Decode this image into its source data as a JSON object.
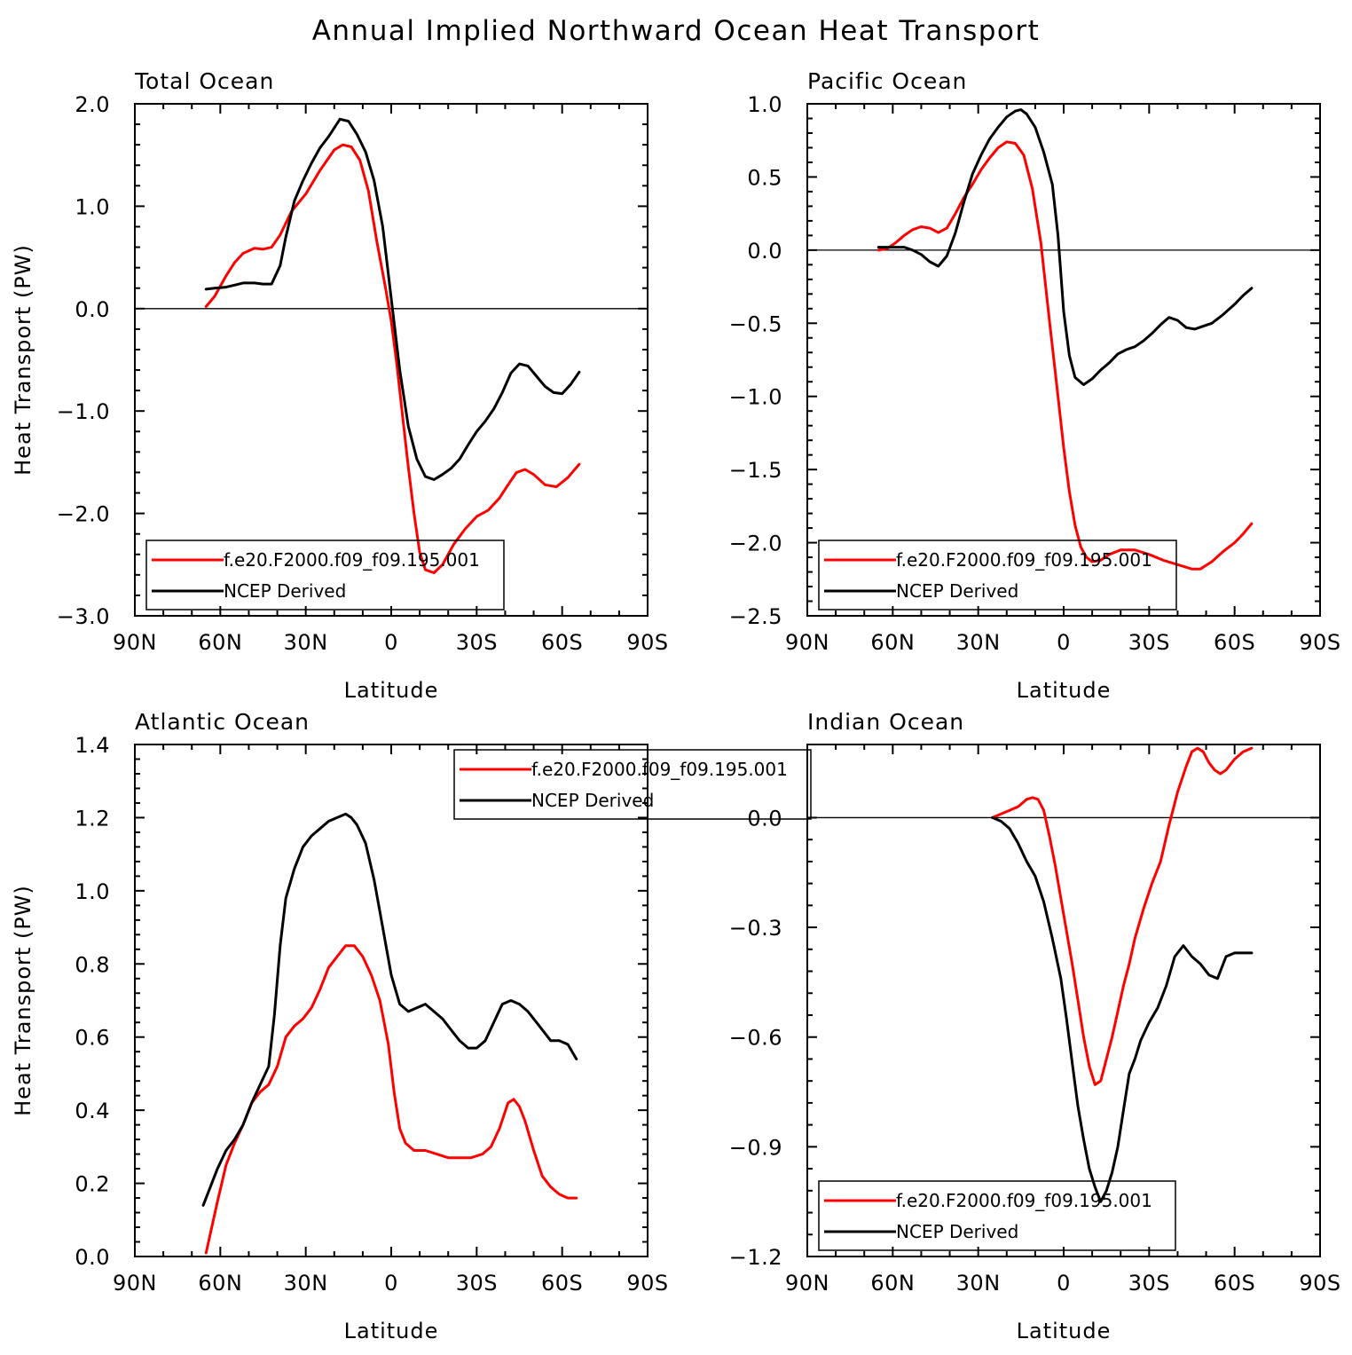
{
  "title": "Annual Implied Northward Ocean Heat Transport",
  "colors": {
    "model": "#ff0000",
    "obs": "#000000",
    "axis": "#000000"
  },
  "chart_data": [
    {
      "type": "line",
      "title": "Total Ocean",
      "xlabel": "Latitude",
      "ylabel": "Heat Transport (PW)",
      "xlim": [
        90,
        -90
      ],
      "ylim": [
        -3.0,
        2.0
      ],
      "x_ticks": [
        90,
        60,
        30,
        0,
        -30,
        -60,
        -90
      ],
      "x_tick_labels": [
        "90N",
        "60N",
        "30N",
        "0",
        "30S",
        "60S",
        "90S"
      ],
      "y_ticks": [
        2.0,
        1.0,
        0.0,
        -1.0,
        -2.0,
        -3.0
      ],
      "y_tick_labels": [
        "2.0",
        "1.0",
        "0.0",
        "−1.0",
        "−2.0",
        "−3.0"
      ],
      "zero_line": true,
      "legend_position": "bottom-left",
      "series": [
        {
          "name": "f.e20.F2000.f09_f09.195.001",
          "color": "#ff0000",
          "x": [
            65,
            62,
            58,
            55,
            52,
            48,
            45,
            42,
            39,
            35,
            30,
            25,
            20,
            17,
            14,
            11,
            8,
            5,
            2,
            0,
            -2,
            -4,
            -6,
            -8,
            -10,
            -12,
            -15,
            -18,
            -22,
            -26,
            -30,
            -34,
            -38,
            -41,
            -44,
            -47,
            -50,
            -54,
            -58,
            -62,
            -66
          ],
          "y": [
            0.02,
            0.12,
            0.32,
            0.45,
            0.54,
            0.59,
            0.58,
            0.6,
            0.72,
            0.95,
            1.12,
            1.35,
            1.55,
            1.6,
            1.58,
            1.45,
            1.15,
            0.65,
            0.2,
            -0.12,
            -0.55,
            -1.05,
            -1.55,
            -2.0,
            -2.38,
            -2.55,
            -2.58,
            -2.5,
            -2.3,
            -2.15,
            -2.03,
            -1.97,
            -1.85,
            -1.72,
            -1.6,
            -1.57,
            -1.62,
            -1.72,
            -1.74,
            -1.65,
            -1.52
          ]
        },
        {
          "name": "NCEP Derived",
          "color": "#000000",
          "x": [
            65,
            62,
            58,
            55,
            52,
            48,
            45,
            42,
            39,
            37,
            34,
            31,
            28,
            25,
            22,
            18,
            15,
            12,
            9,
            6,
            3,
            0,
            -3,
            -6,
            -9,
            -12,
            -15,
            -18,
            -21,
            -24,
            -27,
            -30,
            -33,
            -36,
            -39,
            -42,
            -45,
            -48,
            -51,
            -54,
            -57,
            -60,
            -63,
            -66
          ],
          "y": [
            0.19,
            0.2,
            0.21,
            0.23,
            0.25,
            0.25,
            0.24,
            0.24,
            0.42,
            0.7,
            1.05,
            1.25,
            1.42,
            1.57,
            1.68,
            1.85,
            1.83,
            1.7,
            1.53,
            1.25,
            0.8,
            0.1,
            -0.6,
            -1.15,
            -1.47,
            -1.64,
            -1.67,
            -1.62,
            -1.56,
            -1.47,
            -1.33,
            -1.2,
            -1.1,
            -0.98,
            -0.82,
            -0.63,
            -0.54,
            -0.56,
            -0.66,
            -0.76,
            -0.82,
            -0.83,
            -0.74,
            -0.62
          ]
        }
      ]
    },
    {
      "type": "line",
      "title": "Pacific Ocean",
      "xlabel": "Latitude",
      "ylabel": "",
      "xlim": [
        90,
        -90
      ],
      "ylim": [
        -2.5,
        1.0
      ],
      "x_ticks": [
        90,
        60,
        30,
        0,
        -30,
        -60,
        -90
      ],
      "x_tick_labels": [
        "90N",
        "60N",
        "30N",
        "0",
        "30S",
        "60S",
        "90S"
      ],
      "y_ticks": [
        1.0,
        0.5,
        0.0,
        -0.5,
        -1.0,
        -1.5,
        -2.0,
        -2.5
      ],
      "y_tick_labels": [
        "1.0",
        "0.5",
        "0.0",
        "−0.5",
        "−1.0",
        "−1.5",
        "−2.0",
        "−2.5"
      ],
      "zero_line": true,
      "legend_position": "bottom-left",
      "series": [
        {
          "name": "f.e20.F2000.f09_f09.195.001",
          "color": "#ff0000",
          "x": [
            65,
            62,
            59,
            56,
            53,
            50,
            47,
            44,
            41,
            38,
            35,
            32,
            29,
            26,
            23,
            20,
            17,
            14,
            11,
            8,
            5,
            2,
            0,
            -2,
            -4,
            -6,
            -8,
            -10,
            -13,
            -16,
            -20,
            -25,
            -30,
            -35,
            -40,
            -45,
            -48,
            -52,
            -56,
            -60,
            -63,
            -66
          ],
          "y": [
            0.0,
            0.01,
            0.05,
            0.1,
            0.14,
            0.16,
            0.15,
            0.12,
            0.15,
            0.25,
            0.36,
            0.45,
            0.55,
            0.63,
            0.7,
            0.74,
            0.73,
            0.65,
            0.42,
            0.05,
            -0.48,
            -1.0,
            -1.35,
            -1.65,
            -1.88,
            -2.03,
            -2.1,
            -2.13,
            -2.12,
            -2.08,
            -2.05,
            -2.05,
            -2.08,
            -2.12,
            -2.15,
            -2.18,
            -2.18,
            -2.13,
            -2.06,
            -2.0,
            -1.94,
            -1.87
          ]
        },
        {
          "name": "NCEP Derived",
          "color": "#000000",
          "x": [
            65,
            62,
            59,
            56,
            53,
            50,
            47,
            44,
            41,
            38,
            35,
            32,
            29,
            26,
            23,
            20,
            17,
            15,
            13,
            10,
            7,
            4,
            2,
            0,
            -2,
            -4,
            -7,
            -10,
            -13,
            -16,
            -19,
            -22,
            -25,
            -28,
            -31,
            -34,
            -37,
            -40,
            -43,
            -46,
            -49,
            -52,
            -56,
            -60,
            -63,
            -66
          ],
          "y": [
            0.02,
            0.02,
            0.02,
            0.02,
            0.0,
            -0.03,
            -0.08,
            -0.11,
            -0.04,
            0.12,
            0.33,
            0.52,
            0.65,
            0.76,
            0.84,
            0.91,
            0.95,
            0.96,
            0.93,
            0.84,
            0.67,
            0.45,
            0.1,
            -0.42,
            -0.72,
            -0.87,
            -0.92,
            -0.88,
            -0.82,
            -0.77,
            -0.71,
            -0.68,
            -0.66,
            -0.62,
            -0.57,
            -0.51,
            -0.46,
            -0.48,
            -0.53,
            -0.54,
            -0.52,
            -0.5,
            -0.44,
            -0.37,
            -0.31,
            -0.26
          ]
        }
      ]
    },
    {
      "type": "line",
      "title": "Atlantic Ocean",
      "xlabel": "Latitude",
      "ylabel": "Heat Transport (PW)",
      "xlim": [
        90,
        -90
      ],
      "ylim": [
        0.0,
        1.4
      ],
      "x_ticks": [
        90,
        60,
        30,
        0,
        -30,
        -60,
        -90
      ],
      "x_tick_labels": [
        "90N",
        "60N",
        "30N",
        "0",
        "30S",
        "60S",
        "90S"
      ],
      "y_ticks": [
        1.4,
        1.2,
        1.0,
        0.8,
        0.6,
        0.4,
        0.2,
        0.0
      ],
      "y_tick_labels": [
        "1.4",
        "1.2",
        "1.0",
        "0.8",
        "0.6",
        "0.4",
        "0.2",
        "0.0"
      ],
      "zero_line": false,
      "legend_position": "top-right",
      "series": [
        {
          "name": "f.e20.F2000.f09_f09.195.001",
          "color": "#ff0000",
          "x": [
            65,
            63,
            61,
            58,
            55,
            52,
            49,
            46,
            43,
            40,
            37,
            34,
            31,
            28,
            25,
            22,
            19,
            16,
            13,
            10,
            7,
            4,
            1,
            -1,
            -3,
            -5,
            -8,
            -12,
            -16,
            -20,
            -24,
            -28,
            -32,
            -35,
            -38,
            -41,
            -43,
            -45,
            -47,
            -50,
            -53,
            -56,
            -59,
            -62,
            -65
          ],
          "y": [
            0.01,
            0.08,
            0.15,
            0.25,
            0.31,
            0.36,
            0.42,
            0.45,
            0.47,
            0.52,
            0.6,
            0.63,
            0.65,
            0.68,
            0.73,
            0.79,
            0.82,
            0.85,
            0.85,
            0.82,
            0.77,
            0.7,
            0.58,
            0.45,
            0.35,
            0.31,
            0.29,
            0.29,
            0.28,
            0.27,
            0.27,
            0.27,
            0.28,
            0.3,
            0.35,
            0.42,
            0.43,
            0.41,
            0.37,
            0.29,
            0.22,
            0.19,
            0.17,
            0.16,
            0.16
          ]
        },
        {
          "name": "NCEP Derived",
          "color": "#000000",
          "x": [
            66,
            64,
            61,
            58,
            55,
            52,
            49,
            46,
            43,
            41,
            39,
            37,
            34,
            31,
            28,
            25,
            22,
            19,
            16,
            14,
            12,
            9,
            6,
            3,
            0,
            -3,
            -6,
            -9,
            -12,
            -15,
            -18,
            -21,
            -24,
            -27,
            -30,
            -33,
            -36,
            -39,
            -42,
            -45,
            -48,
            -52,
            -56,
            -59,
            -62,
            -65
          ],
          "y": [
            0.14,
            0.18,
            0.24,
            0.29,
            0.32,
            0.36,
            0.42,
            0.47,
            0.52,
            0.66,
            0.85,
            0.98,
            1.06,
            1.12,
            1.15,
            1.17,
            1.19,
            1.2,
            1.21,
            1.2,
            1.18,
            1.13,
            1.03,
            0.9,
            0.77,
            0.69,
            0.67,
            0.68,
            0.69,
            0.67,
            0.65,
            0.62,
            0.59,
            0.57,
            0.57,
            0.59,
            0.64,
            0.69,
            0.7,
            0.69,
            0.67,
            0.63,
            0.59,
            0.59,
            0.58,
            0.54
          ]
        }
      ]
    },
    {
      "type": "line",
      "title": "Indian Ocean",
      "xlabel": "Latitude",
      "ylabel": "",
      "xlim": [
        90,
        -90
      ],
      "ylim": [
        -1.2,
        0.2
      ],
      "x_ticks": [
        90,
        60,
        30,
        0,
        -30,
        -60,
        -90
      ],
      "x_tick_labels": [
        "90N",
        "60N",
        "30N",
        "0",
        "30S",
        "60S",
        "90S"
      ],
      "y_ticks": [
        0.0,
        -0.3,
        -0.6,
        -0.9,
        -1.2
      ],
      "y_tick_labels": [
        "0.0",
        "−0.3",
        "−0.6",
        "−0.9",
        "−1.2"
      ],
      "zero_line": true,
      "legend_position": "bottom-left",
      "series": [
        {
          "name": "f.e20.F2000.f09_f09.195.001",
          "color": "#ff0000",
          "x": [
            25,
            22,
            19,
            16,
            13,
            11,
            9,
            7,
            5,
            3,
            1,
            -1,
            -3,
            -5,
            -7,
            -9,
            -11,
            -13,
            -15,
            -17,
            -19,
            -21,
            -23,
            -25,
            -28,
            -31,
            -34,
            -37,
            -40,
            -43,
            -45,
            -47,
            -49,
            -51,
            -53,
            -55,
            -57,
            -60,
            -63,
            -66
          ],
          "y": [
            0.0,
            0.01,
            0.02,
            0.03,
            0.05,
            0.055,
            0.05,
            0.02,
            -0.05,
            -0.13,
            -0.22,
            -0.31,
            -0.4,
            -0.5,
            -0.6,
            -0.68,
            -0.73,
            -0.72,
            -0.66,
            -0.6,
            -0.53,
            -0.46,
            -0.4,
            -0.33,
            -0.25,
            -0.18,
            -0.12,
            -0.02,
            0.07,
            0.14,
            0.18,
            0.19,
            0.18,
            0.15,
            0.13,
            0.12,
            0.13,
            0.16,
            0.18,
            0.19
          ]
        },
        {
          "name": "NCEP Derived",
          "color": "#000000",
          "x": [
            25,
            22,
            19,
            16,
            13,
            10,
            7,
            4,
            1,
            -1,
            -3,
            -5,
            -7,
            -9,
            -11,
            -13,
            -15,
            -17,
            -19,
            -21,
            -23,
            -25,
            -27,
            -30,
            -33,
            -36,
            -39,
            -42,
            -45,
            -48,
            -51,
            -54,
            -57,
            -60,
            -63,
            -66
          ],
          "y": [
            0.0,
            -0.01,
            -0.03,
            -0.07,
            -0.12,
            -0.16,
            -0.23,
            -0.33,
            -0.44,
            -0.55,
            -0.67,
            -0.79,
            -0.88,
            -0.96,
            -1.01,
            -1.05,
            -1.02,
            -0.97,
            -0.9,
            -0.8,
            -0.7,
            -0.66,
            -0.61,
            -0.56,
            -0.52,
            -0.46,
            -0.38,
            -0.35,
            -0.38,
            -0.4,
            -0.43,
            -0.44,
            -0.38,
            -0.37,
            -0.37,
            -0.37
          ]
        }
      ]
    }
  ]
}
